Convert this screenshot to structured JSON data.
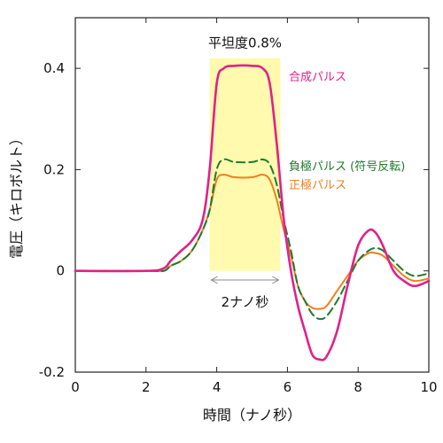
{
  "chart_data": {
    "type": "line",
    "xlabel": "時間（ナノ秒）",
    "ylabel": "電圧（キロボルト）",
    "xlim": [
      0,
      10
    ],
    "ylim": [
      -0.2,
      0.5
    ],
    "x_ticks": [
      0,
      2,
      4,
      6,
      8,
      10
    ],
    "y_ticks": [
      -0.2,
      0,
      0.2,
      0.4
    ],
    "x_tick_labels": [
      "0",
      "2",
      "4",
      "6",
      "8",
      "10"
    ],
    "y_tick_labels": [
      "-0.2",
      "0",
      "0.2",
      "0.4"
    ],
    "grid": false,
    "highlight": {
      "x_range": [
        3.8,
        5.8
      ],
      "y_range": [
        0,
        0.42
      ],
      "color": "#fffaae",
      "label": "平坦度0.8%"
    },
    "span_annotation": {
      "x_range": [
        3.8,
        5.8
      ],
      "y": -0.018,
      "label": "2ナノ秒"
    },
    "series": [
      {
        "name": "合成パルス",
        "color": "#e0218a",
        "dash": "solid",
        "x": [
          0,
          2.0,
          2.5,
          2.7,
          3.0,
          3.3,
          3.6,
          3.8,
          4.0,
          4.2,
          4.5,
          5.0,
          5.3,
          5.5,
          5.7,
          5.9,
          6.1,
          6.3,
          6.5,
          6.7,
          6.9,
          7.1,
          7.4,
          7.7,
          8.0,
          8.3,
          8.5,
          8.7,
          9.0,
          9.3,
          9.6,
          10.0
        ],
        "y": [
          0,
          0,
          0.005,
          0.02,
          0.04,
          0.06,
          0.1,
          0.2,
          0.37,
          0.4,
          0.405,
          0.405,
          0.4,
          0.37,
          0.25,
          0.1,
          0.0,
          -0.07,
          -0.12,
          -0.165,
          -0.175,
          -0.17,
          -0.12,
          -0.03,
          0.05,
          0.08,
          0.075,
          0.05,
          0.0,
          -0.02,
          -0.03,
          -0.02
        ]
      },
      {
        "name": "負極パルス (符号反転)",
        "color": "#1e7a2e",
        "dash": "dashed",
        "x": [
          0,
          2.0,
          2.5,
          2.7,
          3.0,
          3.3,
          3.6,
          3.8,
          4.0,
          4.2,
          4.5,
          5.0,
          5.3,
          5.5,
          5.7,
          5.9,
          6.1,
          6.3,
          6.5,
          6.7,
          6.9,
          7.1,
          7.4,
          7.7,
          8.0,
          8.3,
          8.5,
          8.7,
          9.0,
          9.3,
          9.6,
          10.0
        ],
        "y": [
          0,
          0,
          0.0,
          0.01,
          0.02,
          0.04,
          0.08,
          0.12,
          0.2,
          0.22,
          0.215,
          0.215,
          0.22,
          0.21,
          0.17,
          0.1,
          0.04,
          -0.03,
          -0.06,
          -0.085,
          -0.095,
          -0.09,
          -0.06,
          -0.02,
          0.02,
          0.04,
          0.045,
          0.04,
          0.02,
          0.0,
          -0.01,
          -0.005
        ]
      },
      {
        "name": "正極パルス",
        "color": "#f07f1e",
        "dash": "solid",
        "x": [
          0,
          2.0,
          2.5,
          2.7,
          3.0,
          3.3,
          3.6,
          3.8,
          4.0,
          4.2,
          4.5,
          5.0,
          5.3,
          5.5,
          5.7,
          5.9,
          6.1,
          6.3,
          6.5,
          6.7,
          6.9,
          7.1,
          7.4,
          7.7,
          8.0,
          8.3,
          8.5,
          8.7,
          9.0,
          9.3,
          9.6,
          10.0
        ],
        "y": [
          0,
          0,
          0.0,
          0.01,
          0.02,
          0.04,
          0.08,
          0.12,
          0.18,
          0.19,
          0.185,
          0.185,
          0.19,
          0.18,
          0.14,
          0.08,
          0.03,
          -0.03,
          -0.06,
          -0.073,
          -0.075,
          -0.07,
          -0.04,
          -0.01,
          0.02,
          0.035,
          0.035,
          0.03,
          0.01,
          -0.01,
          -0.02,
          -0.015
        ]
      }
    ]
  }
}
